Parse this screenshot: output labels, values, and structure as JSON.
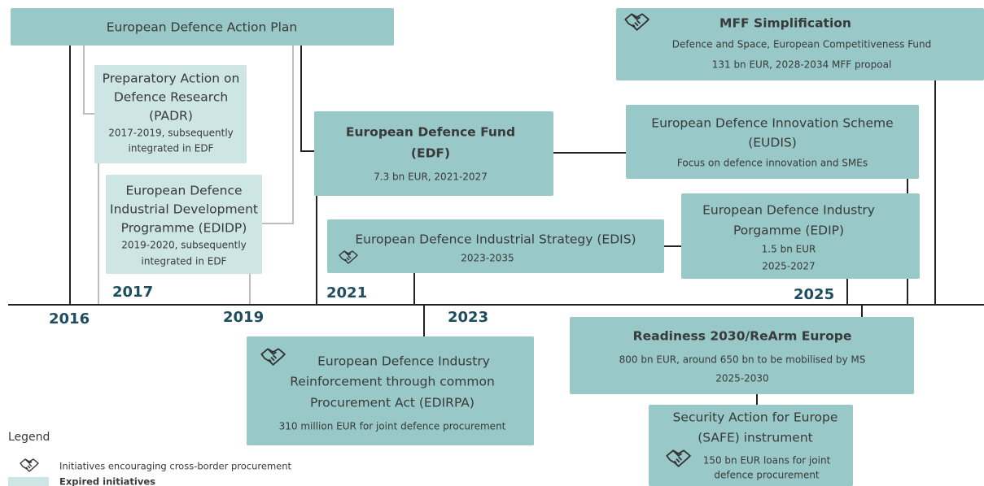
{
  "title": "European Defence Action Plan",
  "initiatives": [
    {
      "title": [
        "Preparatory Action on",
        "Defence Research",
        "(PADR)"
      ],
      "details": [
        "2017-2019, subsequently",
        "integrated in EDF"
      ]
    },
    {
      "title": [
        "European Defence",
        "Industrial Development",
        "Programme (EDIDP)"
      ],
      "details": [
        "2019-2020, subsequently",
        "integrated in EDF"
      ]
    },
    {
      "title": [
        "European Defence Fund",
        "(EDF)"
      ],
      "details": [
        "7.3 bn EUR, 2021-2027"
      ]
    },
    {
      "title": [
        "European Defence Innovation Scheme",
        "(EUDIS)"
      ],
      "details": [
        "Focus on defence innovation and SMEs"
      ]
    },
    {
      "title": [
        "European Defence Industrial Strategy (EDIS)"
      ],
      "details": [
        "2023-2035"
      ]
    },
    {
      "title": [
        "European Defence Industry",
        "Porgamme (EDIP)"
      ],
      "details": [
        "1.5 bn EUR",
        "2025-2027"
      ]
    },
    {
      "title": [
        "MFF Simplification"
      ],
      "details": [
        "Defence and Space, European Competitiveness Fund",
        "131 bn EUR, 2028-2034 MFF propoal"
      ]
    },
    {
      "title": [
        "European Defence Industry",
        "Reinforcement through common",
        "Procurement Act (EDIRPA)"
      ],
      "details": [
        "310 million EUR for joint defence procurement"
      ]
    },
    {
      "title": [
        "Readiness 2030/ReArm Europe"
      ],
      "details": [
        "800 bn EUR, around 650 bn to be mobilised by MS",
        "2025-2030"
      ]
    },
    {
      "title": [
        "Security Action for Europe",
        "(SAFE) instrument"
      ],
      "details": [
        "150 bn EUR loans for joint",
        "defence procurement"
      ]
    }
  ],
  "years": [
    "2016",
    "2017",
    "2019",
    "2021",
    "2023",
    "2025"
  ],
  "legend": {
    "title": "Legend",
    "items": [
      "Initiatives encouraging cross-border procurement",
      "Expired initiatives"
    ]
  }
}
